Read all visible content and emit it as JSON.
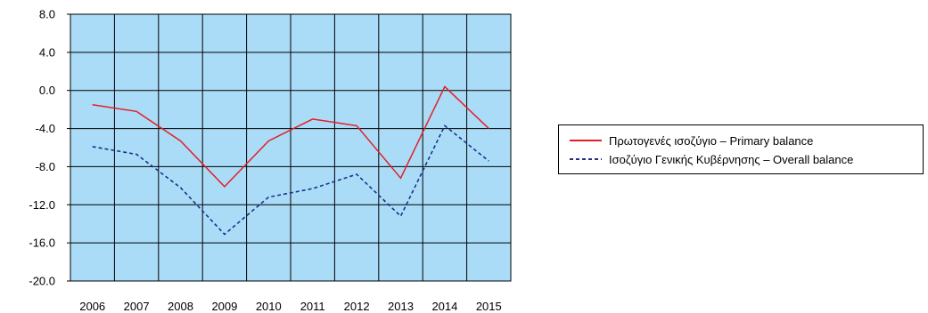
{
  "chart_data": {
    "type": "line",
    "title": "",
    "xlabel": "",
    "ylabel": "",
    "categories": [
      "2006",
      "2007",
      "2008",
      "2009",
      "2010",
      "2011",
      "2012",
      "2013",
      "2014",
      "2015"
    ],
    "ylim": [
      -20.0,
      8.0
    ],
    "yticks": [
      "8.0",
      "4.0",
      "0.0",
      "-4.0",
      "-8.0",
      "-12.0",
      "-16.0",
      "-20.0"
    ],
    "ytick_values": [
      8,
      4,
      0,
      -4,
      -8,
      -12,
      -16,
      -20
    ],
    "grid": true,
    "plot_background": "#aadcf7",
    "legend_position": "right",
    "series": [
      {
        "name": "Πρωτογενές ισοζύγιο – Primary balance",
        "color": "#e31f26",
        "style": "solid",
        "values": [
          -1.5,
          -2.2,
          -5.3,
          -10.1,
          -5.3,
          -3.0,
          -3.7,
          -9.2,
          0.4,
          -4.0
        ]
      },
      {
        "name": "Ισοζύγιο Γενικής Κυβέρνησης – Overall balance",
        "color": "#1f2f8c",
        "style": "dashed",
        "values": [
          -5.9,
          -6.7,
          -10.2,
          -15.1,
          -11.2,
          -10.3,
          -8.8,
          -13.2,
          -3.7,
          -7.4
        ]
      }
    ]
  }
}
